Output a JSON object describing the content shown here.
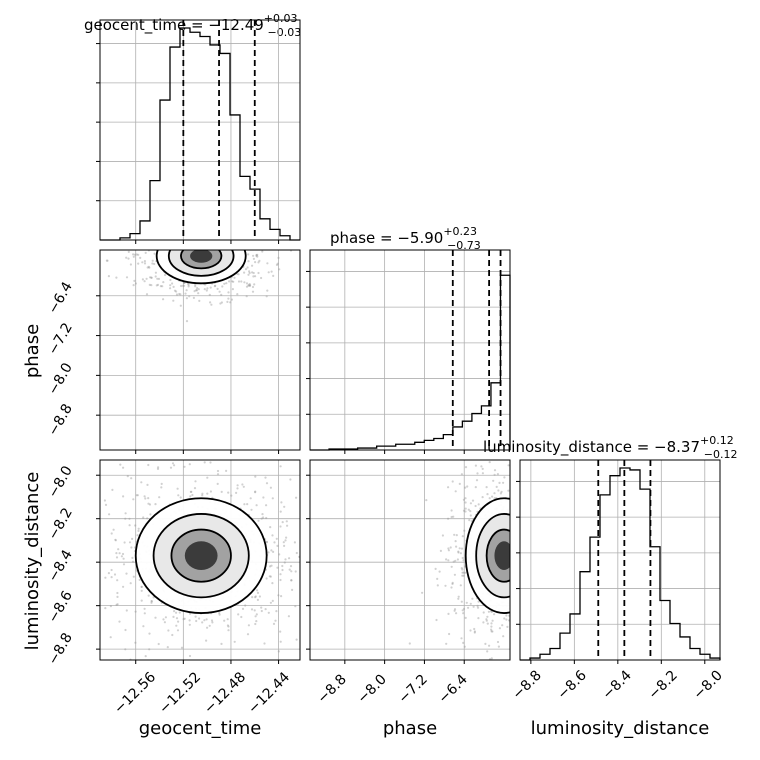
{
  "figure": {
    "type": "corner",
    "panels": [
      {
        "id": "hist-geocent",
        "title_main": "geocent_time = −12.49",
        "title_sup": "+0.03",
        "title_sub": "−0.03"
      },
      {
        "id": "hist-phase",
        "title_main": "phase = −5.90",
        "title_sup": "+0.23",
        "title_sub": "−0.73"
      },
      {
        "id": "hist-lumdist",
        "title_main": "luminosity_distance = −8.37",
        "title_sup": "+0.12",
        "title_sub": "−0.12"
      }
    ],
    "axis_labels": {
      "x_geocent": "geocent_time",
      "x_phase": "phase",
      "x_lumdist": "luminosity_distance",
      "y_phase": "phase",
      "y_lumdist": "luminosity_distance"
    },
    "ticks": {
      "geocent_time": [
        "−12.56",
        "−12.52",
        "−12.48",
        "−12.44"
      ],
      "phase": [
        "−8.8",
        "−8.0",
        "−7.2",
        "−6.4"
      ],
      "luminosity_distance_y": [
        "−8.0",
        "−8.2",
        "−8.4",
        "−8.6",
        "−8.8"
      ],
      "luminosity_distance_x": [
        "−8.8",
        "−8.6",
        "−8.4",
        "−8.2",
        "−8.0"
      ]
    }
  },
  "chart_data": {
    "type": "corner",
    "parameters": [
      "geocent_time",
      "phase",
      "luminosity_distance"
    ],
    "ranges": {
      "geocent_time": [
        -12.59,
        -12.422
      ],
      "phase": [
        -9.5,
        -5.48
      ],
      "luminosity_distance": [
        -8.85,
        -7.93
      ]
    },
    "tick_values": {
      "geocent_time": [
        -12.56,
        -12.52,
        -12.48,
        -12.44
      ],
      "phase": [
        -8.8,
        -8.0,
        -7.2,
        -6.4
      ],
      "luminosity_distance": [
        -8.8,
        -8.6,
        -8.4,
        -8.2,
        -8.0
      ]
    },
    "quantiles": {
      "geocent_time": [
        -12.52,
        -12.49,
        -12.46
      ],
      "phase": [
        -6.63,
        -5.9,
        -5.67
      ],
      "luminosity_distance": [
        -8.49,
        -8.37,
        -8.25
      ]
    },
    "histograms": {
      "geocent_time": {
        "edges_range": [
          -12.59,
          -12.422
        ],
        "counts": [
          0,
          0,
          0.01,
          0.03,
          0.09,
          0.28,
          0.66,
          0.91,
          1.0,
          0.98,
          0.96,
          0.92,
          0.88,
          0.59,
          0.3,
          0.24,
          0.1,
          0.05,
          0.02,
          0
        ]
      },
      "phase": {
        "edges_range": [
          -9.5,
          -5.48
        ],
        "counts": [
          0,
          0,
          0.005,
          0.005,
          0.005,
          0.01,
          0.01,
          0.02,
          0.02,
          0.03,
          0.03,
          0.04,
          0.05,
          0.06,
          0.08,
          0.12,
          0.15,
          0.19,
          0.23,
          0.35,
          0.91
        ]
      },
      "luminosity_distance": {
        "edges_range": [
          -8.85,
          -7.93
        ],
        "counts": [
          0,
          0.01,
          0.03,
          0.06,
          0.14,
          0.24,
          0.46,
          0.64,
          0.86,
          0.96,
          1.0,
          0.99,
          0.89,
          0.59,
          0.31,
          0.19,
          0.12,
          0.06,
          0.03,
          0.01
        ]
      }
    },
    "density_2d": [
      {
        "x": "geocent_time",
        "y": "phase",
        "center": [
          -12.505,
          -5.6
        ],
        "spread": [
          0.017,
          0.25
        ]
      },
      {
        "x": "geocent_time",
        "y": "luminosity_distance",
        "center": [
          -12.505,
          -8.37
        ],
        "spread": [
          0.025,
          0.12
        ]
      },
      {
        "x": "phase",
        "y": "luminosity_distance",
        "center": [
          -5.6,
          -8.37
        ],
        "spread": [
          0.35,
          0.12
        ]
      }
    ]
  }
}
